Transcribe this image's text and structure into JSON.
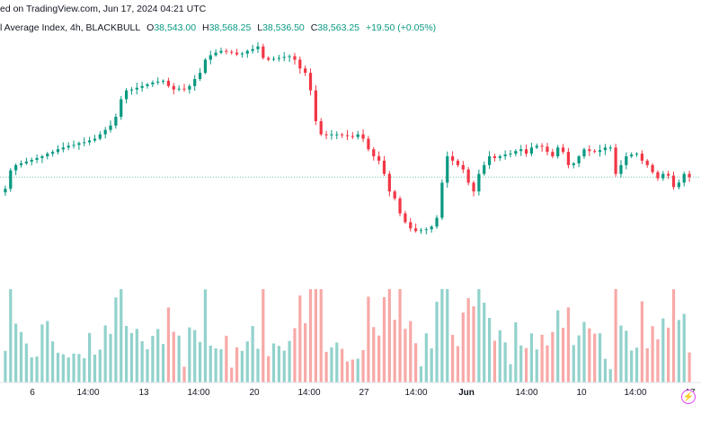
{
  "header": {
    "caption": "ed on TradingView.com, Jun 17, 2024 04:21 UTC",
    "symbol": "l Average Index, 4h, BLACKBULL",
    "open_label": "O",
    "open": "38,543.00",
    "high_label": "H",
    "high": "38,568.25",
    "low_label": "L",
    "low": "38,536.50",
    "close_label": "C",
    "close": "38,563.25",
    "change": "+19.50 (+0.05%)"
  },
  "flash_icon": "lightning-icon",
  "chart_data": {
    "type": "candlestick",
    "title": "",
    "xlabel": "",
    "ylabel": "",
    "x_ticks": [
      "6",
      "14:00",
      "13",
      "14:00",
      "20",
      "14:00",
      "27",
      "14:00",
      "Jun",
      "14:00",
      "10",
      "14:00",
      "17"
    ],
    "colors": {
      "up": "#089981",
      "down": "#f23645",
      "up_volume": "#92d2cc",
      "down_volume": "#f7a9a7",
      "last_price_line": "#089981"
    },
    "last_close": 38563.25,
    "grid": false,
    "ylim": [
      36900,
      40150
    ],
    "close": [
      38430,
      38640,
      38700,
      38720,
      38740,
      38760,
      38780,
      38800,
      38830,
      38850,
      38880,
      38900,
      38920,
      38930,
      38950,
      38960,
      38980,
      39000,
      39050,
      39100,
      39150,
      39250,
      39450,
      39550,
      39560,
      39580,
      39600,
      39620,
      39640,
      39650,
      39660,
      39600,
      39560,
      39570,
      39560,
      39600,
      39680,
      39750,
      39900,
      39950,
      39980,
      40000,
      39990,
      39980,
      39960,
      39970,
      40000,
      40020,
      40050,
      39920,
      39900,
      39910,
      39920,
      39930,
      39940,
      39900,
      39800,
      39750,
      39550,
      39200,
      39050,
      39040,
      39050,
      39050,
      39040,
      39030,
      39020,
      39050,
      39000,
      38880,
      38800,
      38750,
      38600,
      38400,
      38320,
      38150,
      38050,
      37980,
      37950,
      37960,
      37970,
      38000,
      38100,
      38500,
      38800,
      38750,
      38700,
      38650,
      38500,
      38400,
      38600,
      38700,
      38800,
      38780,
      38800,
      38820,
      38830,
      38860,
      38880,
      38830,
      38900,
      38920,
      38910,
      38850,
      38800,
      38900,
      38850,
      38700,
      38720,
      38800,
      38880,
      38860,
      38850,
      38870,
      38900,
      38900,
      38600,
      38700,
      38800,
      38820,
      38830,
      38750,
      38700,
      38620,
      38550,
      38600,
      38580,
      38450,
      38500,
      38600,
      38563
    ]
  }
}
